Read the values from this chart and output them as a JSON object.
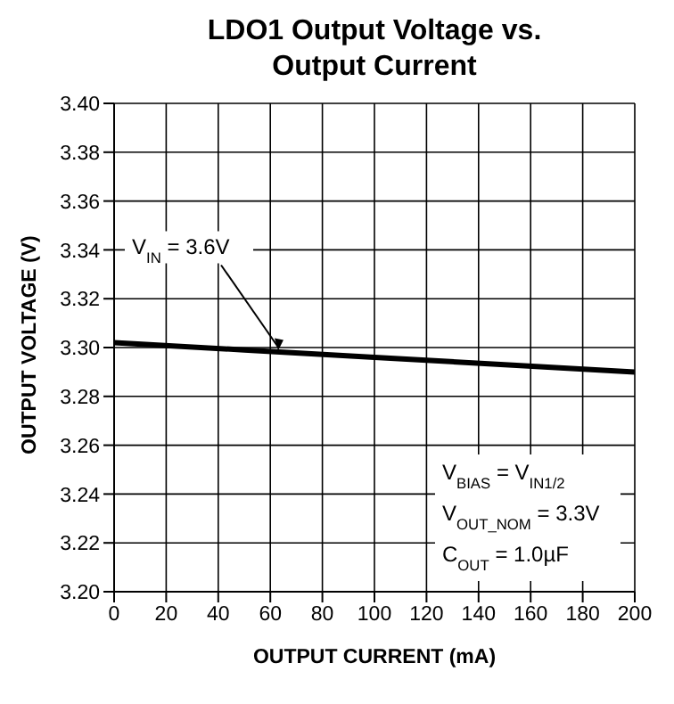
{
  "chart_data": {
    "type": "line",
    "title": "LDO1 Output Voltage vs. Output Current",
    "xlabel": "OUTPUT CURRENT (mA)",
    "ylabel": "OUTPUT VOLTAGE (V)",
    "x": [
      0,
      50,
      100,
      150,
      200
    ],
    "series": [
      {
        "color": "#000000",
        "values": [
          3.302,
          3.299,
          3.296,
          3.293,
          3.29
        ]
      }
    ],
    "xlim": [
      0,
      200
    ],
    "xticks": [
      0,
      20,
      40,
      60,
      80,
      100,
      120,
      140,
      160,
      180,
      200
    ],
    "ylim": [
      3.2,
      3.4
    ],
    "yticks": [
      {
        "value": 3.2,
        "label": "3.20"
      },
      {
        "value": 3.22,
        "label": "3.22"
      },
      {
        "value": 3.24,
        "label": "3.24"
      },
      {
        "value": 3.26,
        "label": "3.26"
      },
      {
        "value": 3.28,
        "label": "3.28"
      },
      {
        "value": 3.3,
        "label": "3.30"
      },
      {
        "value": 3.32,
        "label": "3.32"
      },
      {
        "value": 3.34,
        "label": "3.34"
      },
      {
        "value": 3.36,
        "label": "3.36"
      },
      {
        "value": 3.38,
        "label": "3.38"
      },
      {
        "value": 3.4,
        "label": "3.40"
      }
    ],
    "grid": true,
    "legend": false,
    "marker": "none",
    "line_style": "solid",
    "annotations": [
      {
        "text": "V$_{IN}$ = 3.6V",
        "x": 63,
        "y": 3.298
      },
      "V$_{BIAS}$ = V$_{IN1/2}$",
      "V$_{OUT_NOM}$ = 3.3V",
      "C$_{OUT}$ = 1.0µF"
    ]
  }
}
